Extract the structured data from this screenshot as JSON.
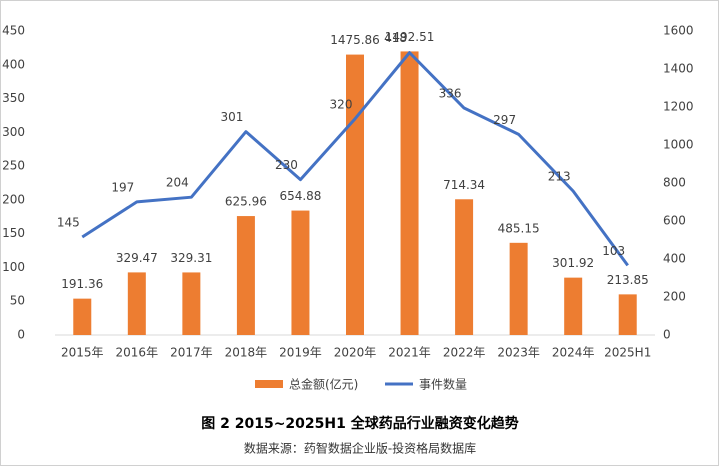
{
  "chart_data": {
    "type": "bar_line",
    "title": "图 2 2015~2025H1 全球药品行业融资变化趋势",
    "source": "数据来源：药智数据企业版-投资格局数据库",
    "categories": [
      "2015年",
      "2016年",
      "2017年",
      "2018年",
      "2019年",
      "2020年",
      "2021年",
      "2022年",
      "2023年",
      "2024年",
      "2025H1"
    ],
    "series": [
      {
        "name": "总金额(亿元)",
        "type": "bar",
        "axis": "y2",
        "color": "#ed7d31",
        "values": [
          191.36,
          329.47,
          329.31,
          625.96,
          654.88,
          1475.86,
          1492.51,
          714.34,
          485.15,
          301.92,
          213.85
        ]
      },
      {
        "name": "事件数量",
        "type": "line",
        "axis": "y",
        "color": "#4472c4",
        "values": [
          145,
          197,
          204,
          301,
          230,
          320,
          418,
          336,
          297,
          213,
          103
        ]
      }
    ],
    "ylim": [
      0,
      450
    ],
    "yticks": [
      0,
      50,
      100,
      150,
      200,
      250,
      300,
      350,
      400,
      450
    ],
    "y2lim": [
      0,
      1600
    ],
    "y2ticks": [
      0,
      200,
      400,
      600,
      800,
      1000,
      1200,
      1400,
      1600
    ],
    "legend": "bottom"
  }
}
